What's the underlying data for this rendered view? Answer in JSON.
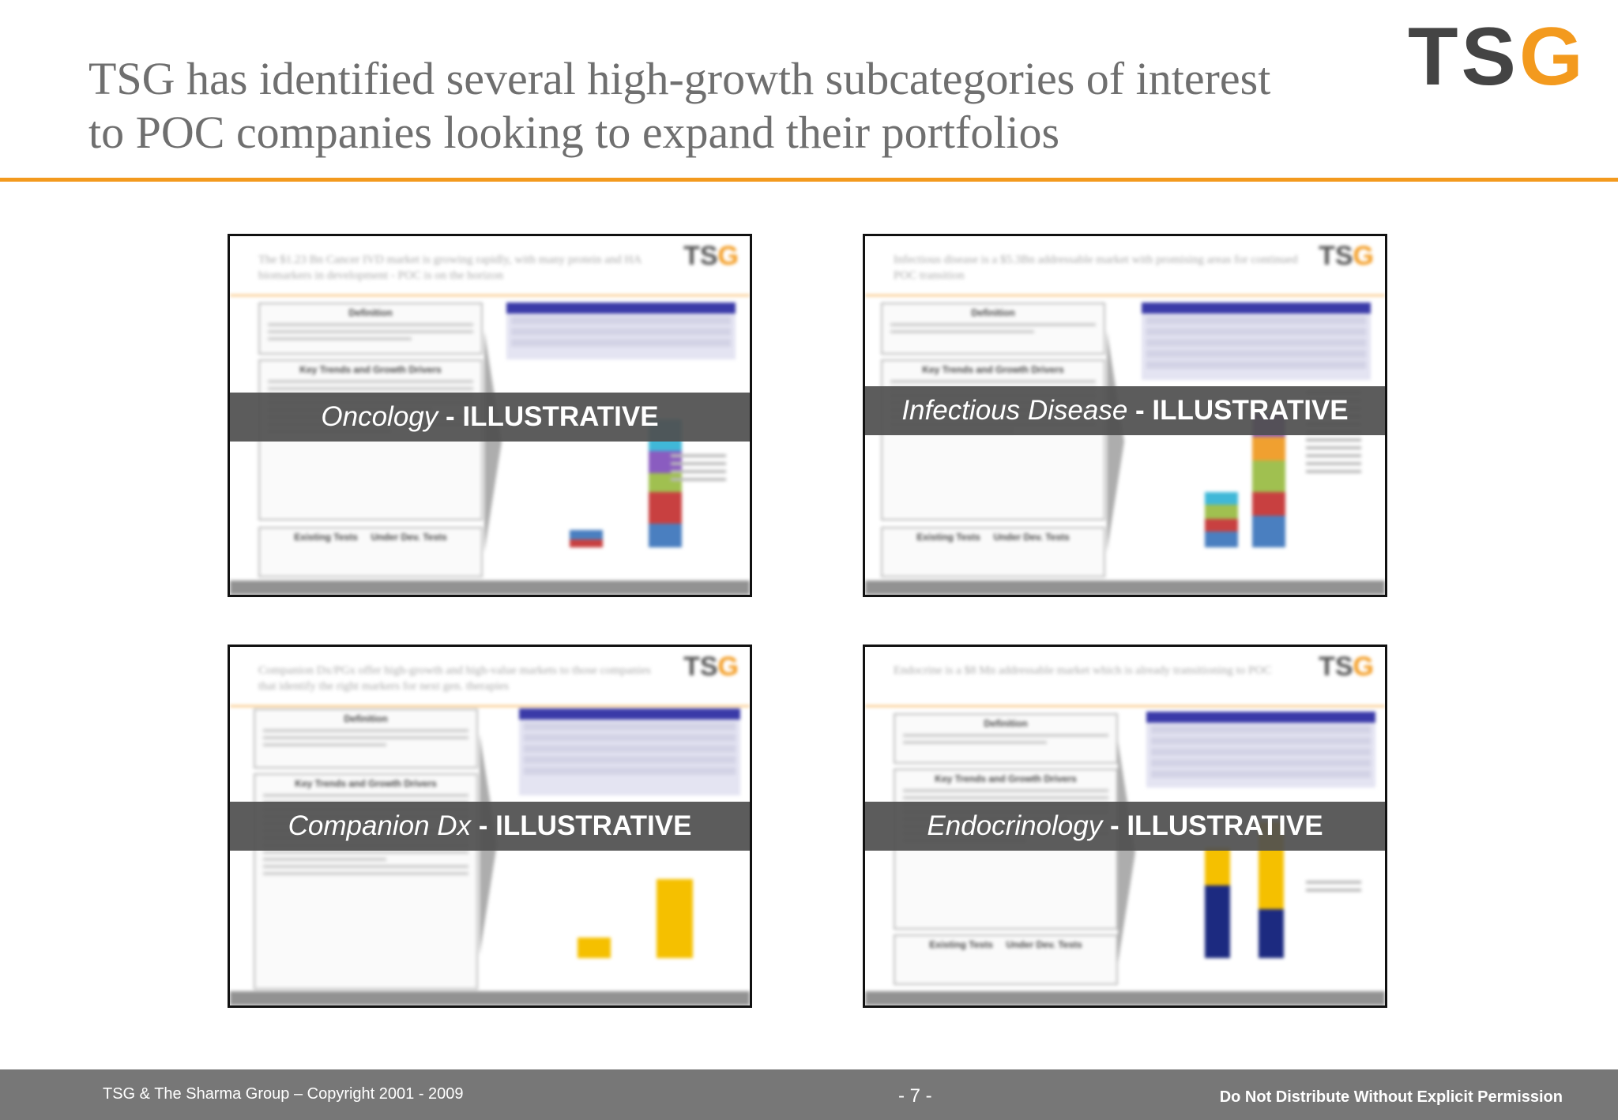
{
  "header": {
    "title_line1": "TSG has identified several high-growth subcategories of interest",
    "title_line2": "to POC companies looking to expand their portfolios",
    "logo_main": "TS",
    "logo_accent": "G"
  },
  "panels": [
    {
      "name": "Oncology",
      "suffix": " - ILLUSTRATIVE"
    },
    {
      "name": "Infectious Disease",
      "suffix": " - ILLUSTRATIVE"
    },
    {
      "name": "Companion Dx",
      "suffix": " - ILLUSTRATIVE"
    },
    {
      "name": "Endocrinology",
      "suffix": " - ILLUSTRATIVE"
    }
  ],
  "thumb_text": {
    "definition": "Definition",
    "trends": "Key Trends and Growth Drivers",
    "existing": "Existing Tests",
    "underdev": "Under Dev. Tests",
    "logo_main": "TS",
    "logo_accent": "G",
    "title_oncology": "The $1.23 Bn Cancer IVD market is growing rapidly, with many protein and HA biomarkers in development - POC is on the horizon",
    "title_infectious": "Infectious disease is a $5.3Bn addressable market with promising areas for continued POC transition",
    "title_companion": "Companion Dx/PGx offer high-growth and high-value markets to those companies that identify the right markers for next gen. therapies",
    "title_endocrinology": "Endocrine is a $8 Mn addressable market which is already transitioning to POC"
  },
  "footer": {
    "left": "TSG & The Sharma Group – Copyright 2001 - 2009",
    "center": "- 7 -",
    "right": "Do Not Distribute Without Explicit Permission"
  },
  "colors": {
    "accent": "#f39a1e",
    "banner": "#505050",
    "footer": "#777777"
  }
}
